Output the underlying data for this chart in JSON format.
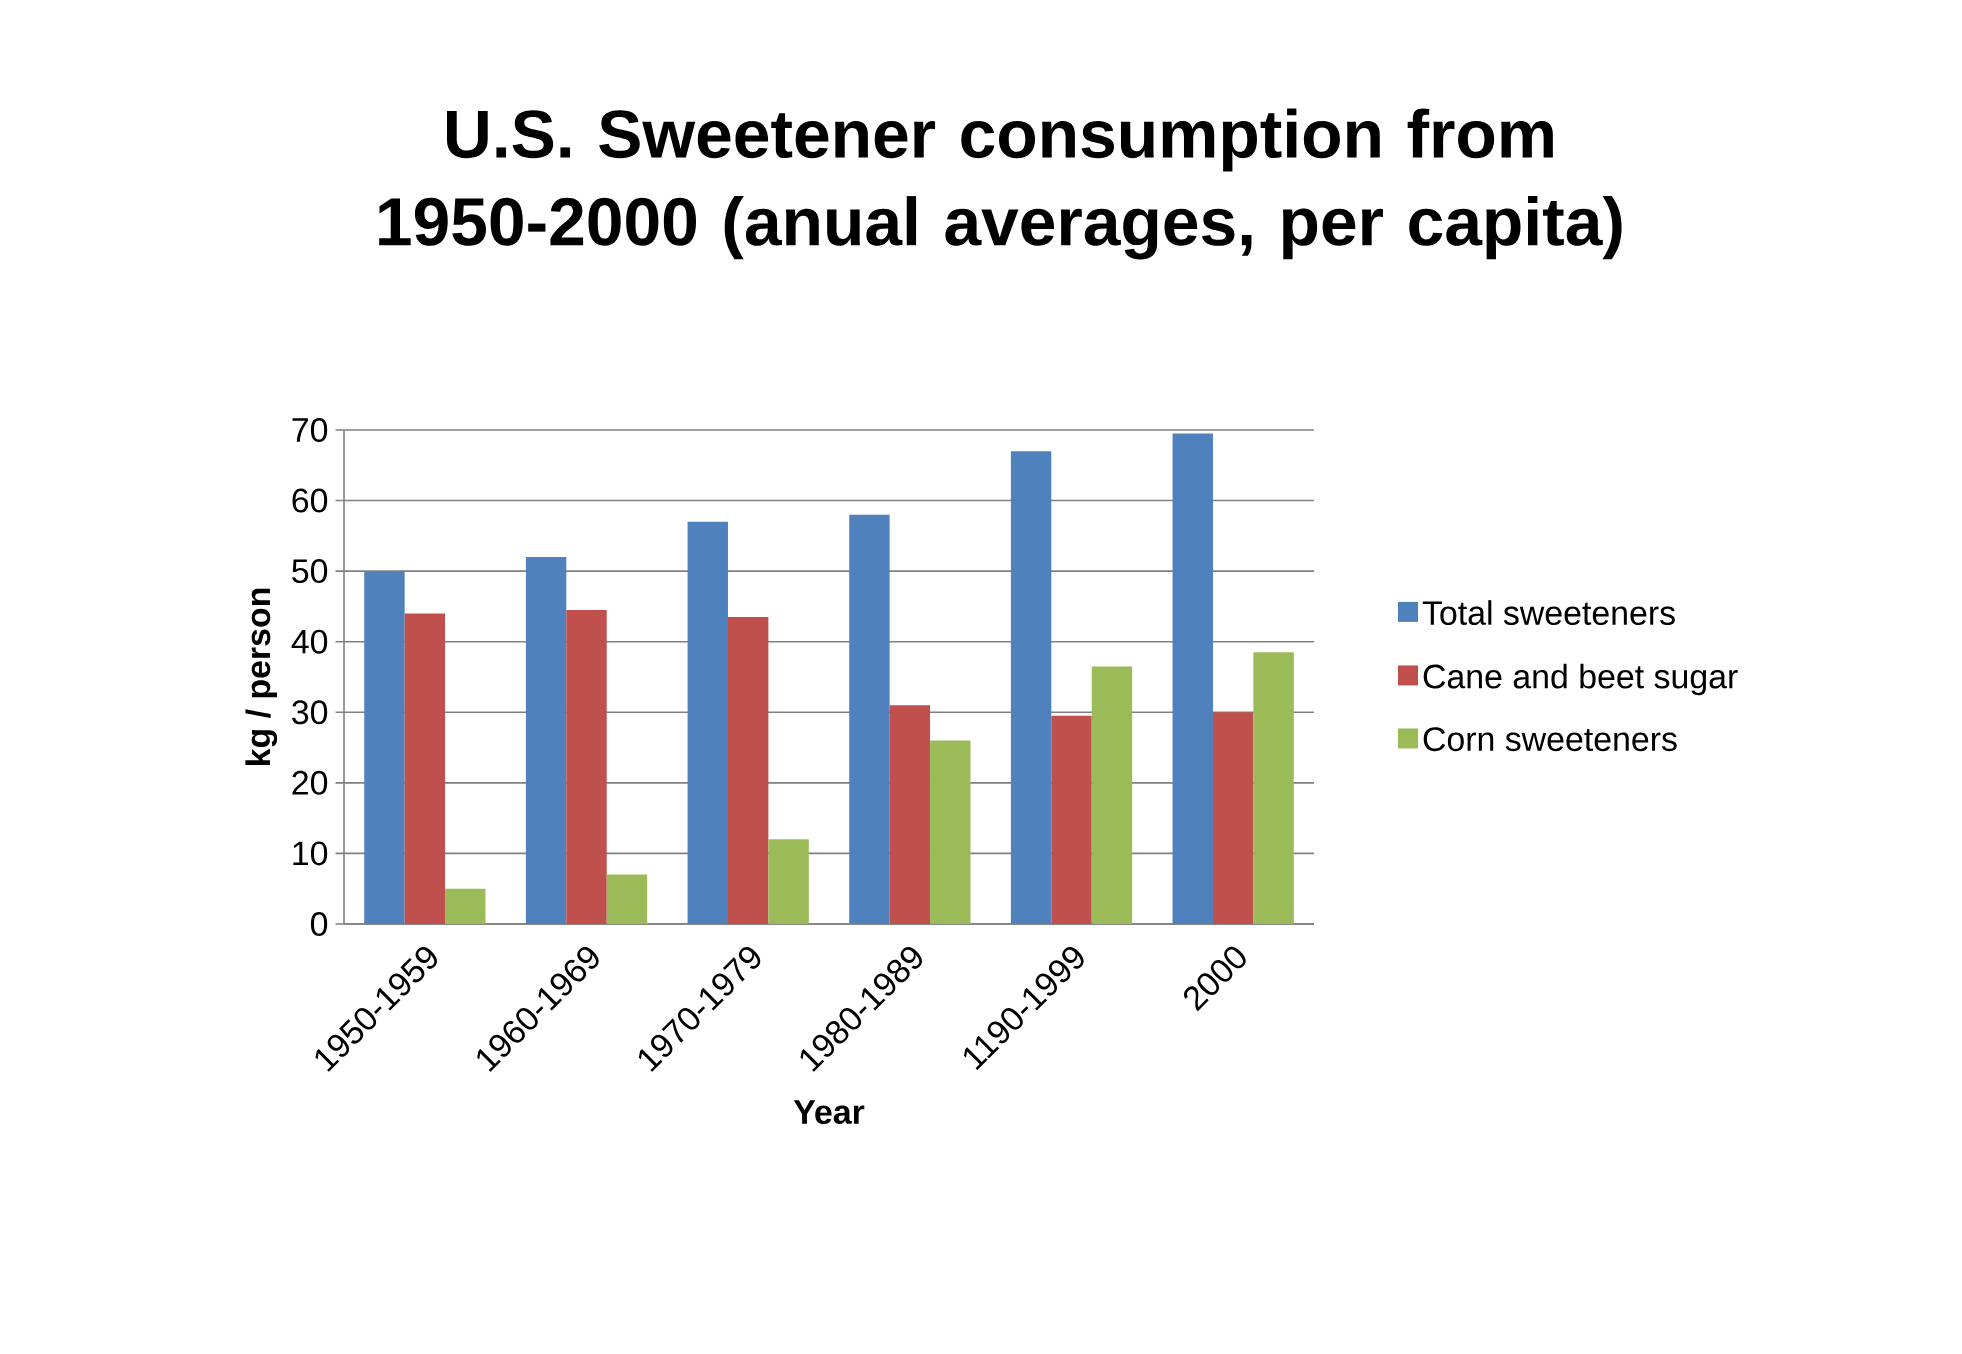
{
  "chart_data": {
    "type": "bar",
    "title": "U.S. Sweetener consumption from 1950-2000 (anual averages, per capita)",
    "xlabel": "Year",
    "ylabel": "kg / person",
    "categories": [
      "1950-1959",
      "1960-1969",
      "1970-1979",
      "1980-1989",
      "1190-1999",
      "2000"
    ],
    "series": [
      {
        "name": "Total sweeteners",
        "color": "#4f81bd",
        "values": [
          50,
          52,
          57,
          58,
          67,
          69.5
        ]
      },
      {
        "name": "Cane and beet sugar",
        "color": "#c0504d",
        "values": [
          44,
          44.5,
          43.5,
          31,
          29.5,
          30
        ]
      },
      {
        "name": "Corn sweeteners",
        "color": "#9bbb59",
        "values": [
          5,
          7,
          12,
          26,
          36.5,
          38.5
        ]
      }
    ],
    "ylim": [
      0,
      70
    ],
    "yticks": [
      0,
      10,
      20,
      30,
      40,
      50,
      60,
      70
    ],
    "grid": "y",
    "legend": "right"
  }
}
